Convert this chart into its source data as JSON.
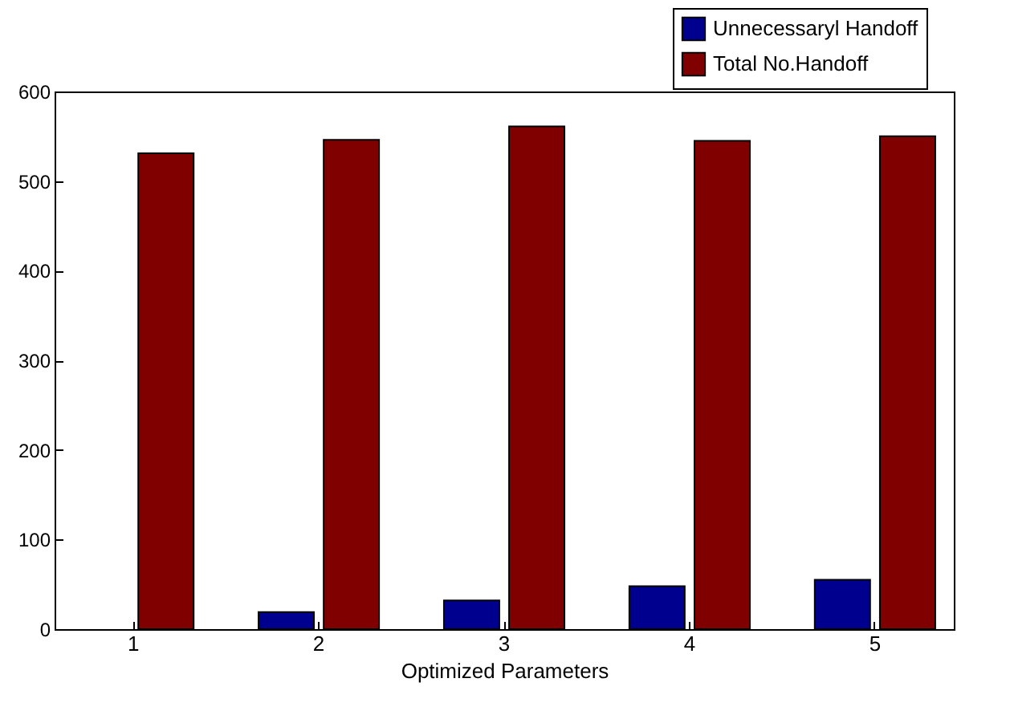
{
  "chart_data": {
    "type": "bar",
    "xlabel": "Optimized Parameters",
    "categories": [
      "1",
      "2",
      "3",
      "4",
      "5"
    ],
    "series": [
      {
        "name": "Unnecessaryl Handoff",
        "color": "#00008f",
        "values": [
          0,
          19,
          32,
          48,
          55
        ]
      },
      {
        "name": "Total No.Handoff",
        "color": "#800000",
        "values": [
          531,
          546,
          561,
          545,
          550
        ]
      }
    ],
    "ylim": [
      0,
      600
    ],
    "yticks": [
      0,
      100,
      200,
      300,
      400,
      500,
      600
    ],
    "grid": false,
    "legend": "top right"
  }
}
